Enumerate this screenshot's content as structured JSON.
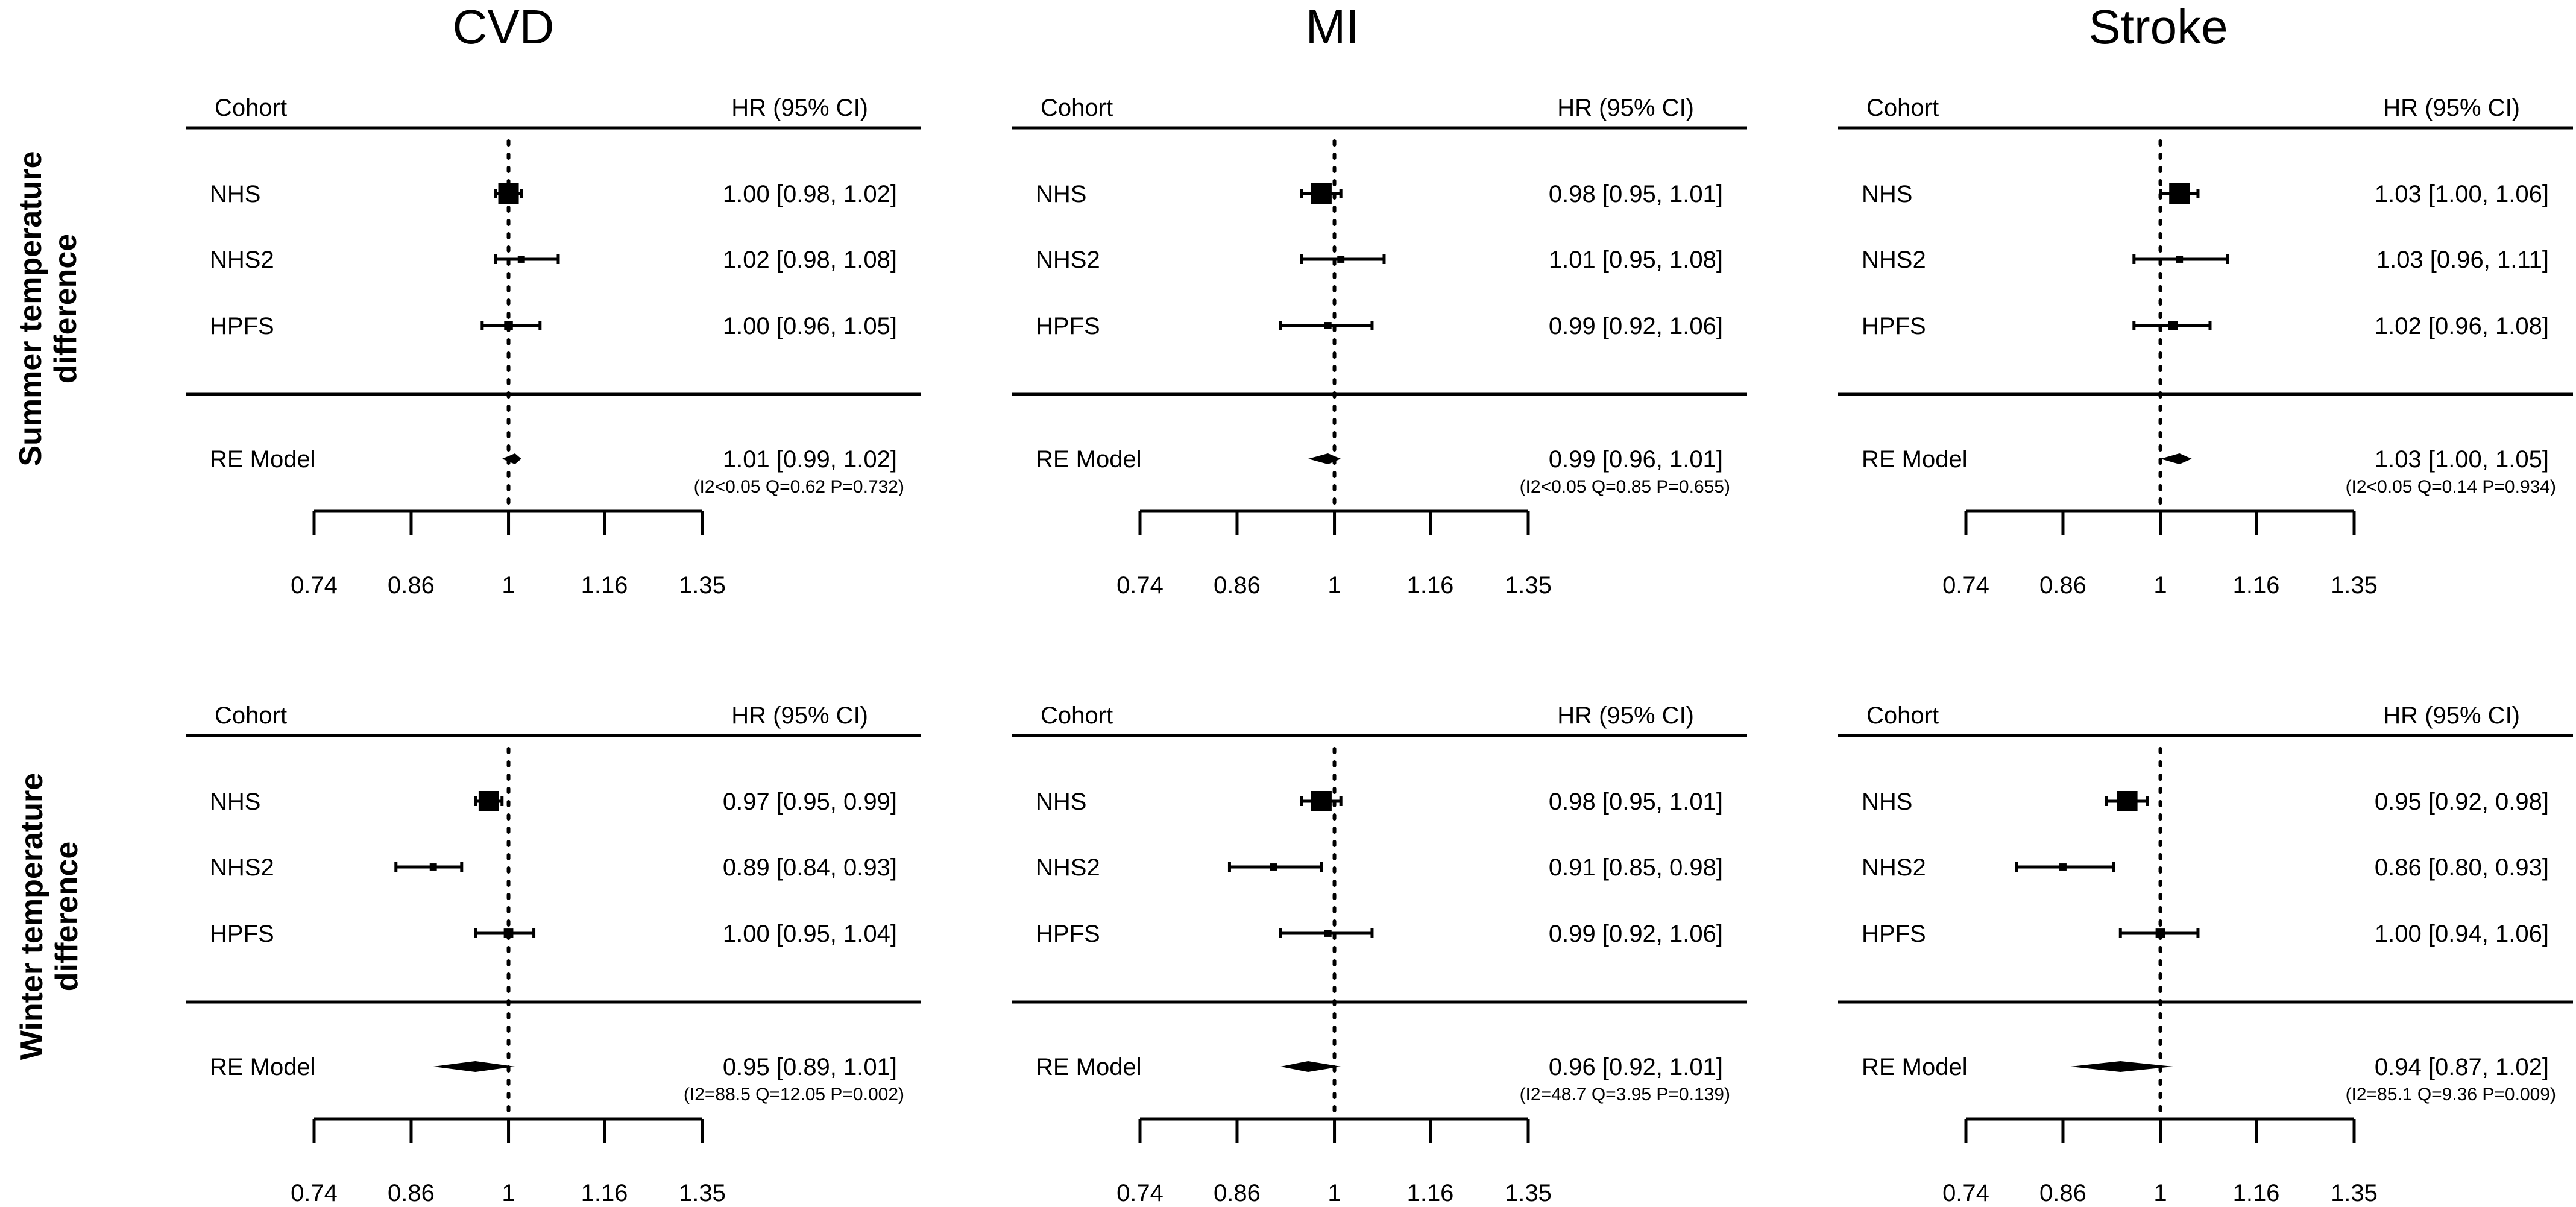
{
  "chart_data": {
    "type": "forest",
    "columns": [
      "CVD",
      "MI",
      "Stroke"
    ],
    "rows": [
      "Summer temperature\ndifference",
      "Winter temperature\ndifference"
    ],
    "header_left": "Cohort",
    "header_right": "HR (95% CI)",
    "pooled_label": "RE Model",
    "x_ticks": [
      0.74,
      0.86,
      1,
      1.16,
      1.35
    ],
    "x_tick_labels": [
      "0.74",
      "0.86",
      "1",
      "1.16",
      "1.35"
    ],
    "reference_line": 1,
    "x_scale": "log",
    "panels": [
      {
        "row": 0,
        "col": 0,
        "studies": [
          {
            "name": "NHS",
            "hr": 1.0,
            "lo": 0.98,
            "hi": 1.02,
            "weight": 1.0,
            "text": "1.00 [0.98, 1.02]"
          },
          {
            "name": "NHS2",
            "hr": 1.02,
            "lo": 0.98,
            "hi": 1.08,
            "weight": 0.15,
            "text": "1.02 [0.98, 1.08]"
          },
          {
            "name": "HPFS",
            "hr": 1.0,
            "lo": 0.96,
            "hi": 1.05,
            "weight": 0.25,
            "text": "1.00 [0.96, 1.05]"
          }
        ],
        "pooled": {
          "hr": 1.01,
          "lo": 0.99,
          "hi": 1.02,
          "text": "1.01 [0.99, 1.02]"
        },
        "stats": "(I2<0.05 Q=0.62 P=0.732)"
      },
      {
        "row": 0,
        "col": 1,
        "studies": [
          {
            "name": "NHS",
            "hr": 0.98,
            "lo": 0.95,
            "hi": 1.01,
            "weight": 1.0,
            "text": "0.98 [0.95, 1.01]"
          },
          {
            "name": "NHS2",
            "hr": 1.01,
            "lo": 0.95,
            "hi": 1.08,
            "weight": 0.15,
            "text": "1.01 [0.95, 1.08]"
          },
          {
            "name": "HPFS",
            "hr": 0.99,
            "lo": 0.92,
            "hi": 1.06,
            "weight": 0.15,
            "text": "0.99 [0.92, 1.06]"
          }
        ],
        "pooled": {
          "hr": 0.99,
          "lo": 0.96,
          "hi": 1.01,
          "text": "0.99 [0.96, 1.01]"
        },
        "stats": "(I2<0.05 Q=0.85 P=0.655)"
      },
      {
        "row": 0,
        "col": 2,
        "studies": [
          {
            "name": "NHS",
            "hr": 1.03,
            "lo": 1.0,
            "hi": 1.06,
            "weight": 1.0,
            "text": "1.03 [1.00, 1.06]"
          },
          {
            "name": "NHS2",
            "hr": 1.03,
            "lo": 0.96,
            "hi": 1.11,
            "weight": 0.15,
            "text": "1.03 [0.96, 1.11]"
          },
          {
            "name": "HPFS",
            "hr": 1.02,
            "lo": 0.96,
            "hi": 1.08,
            "weight": 0.3,
            "text": "1.02 [0.96, 1.08]"
          }
        ],
        "pooled": {
          "hr": 1.03,
          "lo": 1.0,
          "hi": 1.05,
          "text": "1.03 [1.00, 1.05]"
        },
        "stats": "(I2<0.05 Q=0.14 P=0.934)"
      },
      {
        "row": 1,
        "col": 0,
        "studies": [
          {
            "name": "NHS",
            "hr": 0.97,
            "lo": 0.95,
            "hi": 0.99,
            "weight": 1.0,
            "text": "0.97 [0.95, 0.99]"
          },
          {
            "name": "NHS2",
            "hr": 0.89,
            "lo": 0.84,
            "hi": 0.93,
            "weight": 0.15,
            "text": "0.89 [0.84, 0.93]"
          },
          {
            "name": "HPFS",
            "hr": 1.0,
            "lo": 0.95,
            "hi": 1.04,
            "weight": 0.3,
            "text": "1.00 [0.95, 1.04]"
          }
        ],
        "pooled": {
          "hr": 0.95,
          "lo": 0.89,
          "hi": 1.01,
          "text": "0.95 [0.89, 1.01]"
        },
        "stats": "(I2=88.5 Q=12.05 P=0.002)"
      },
      {
        "row": 1,
        "col": 1,
        "studies": [
          {
            "name": "NHS",
            "hr": 0.98,
            "lo": 0.95,
            "hi": 1.01,
            "weight": 1.0,
            "text": "0.98 [0.95, 1.01]"
          },
          {
            "name": "NHS2",
            "hr": 0.91,
            "lo": 0.85,
            "hi": 0.98,
            "weight": 0.15,
            "text": "0.91 [0.85, 0.98]"
          },
          {
            "name": "HPFS",
            "hr": 0.99,
            "lo": 0.92,
            "hi": 1.06,
            "weight": 0.15,
            "text": "0.99 [0.92, 1.06]"
          }
        ],
        "pooled": {
          "hr": 0.96,
          "lo": 0.92,
          "hi": 1.01,
          "text": "0.96 [0.92, 1.01]"
        },
        "stats": "(I2=48.7 Q=3.95 P=0.139)"
      },
      {
        "row": 1,
        "col": 2,
        "studies": [
          {
            "name": "NHS",
            "hr": 0.95,
            "lo": 0.92,
            "hi": 0.98,
            "weight": 1.0,
            "text": "0.95 [0.92, 0.98]"
          },
          {
            "name": "NHS2",
            "hr": 0.86,
            "lo": 0.8,
            "hi": 0.93,
            "weight": 0.15,
            "text": "0.86 [0.80, 0.93]"
          },
          {
            "name": "HPFS",
            "hr": 1.0,
            "lo": 0.94,
            "hi": 1.06,
            "weight": 0.3,
            "text": "1.00 [0.94, 1.06]"
          }
        ],
        "pooled": {
          "hr": 0.94,
          "lo": 0.87,
          "hi": 1.02,
          "text": "0.94 [0.87, 1.02]"
        },
        "stats": "(I2=85.1 Q=9.36 P=0.009)"
      }
    ]
  }
}
